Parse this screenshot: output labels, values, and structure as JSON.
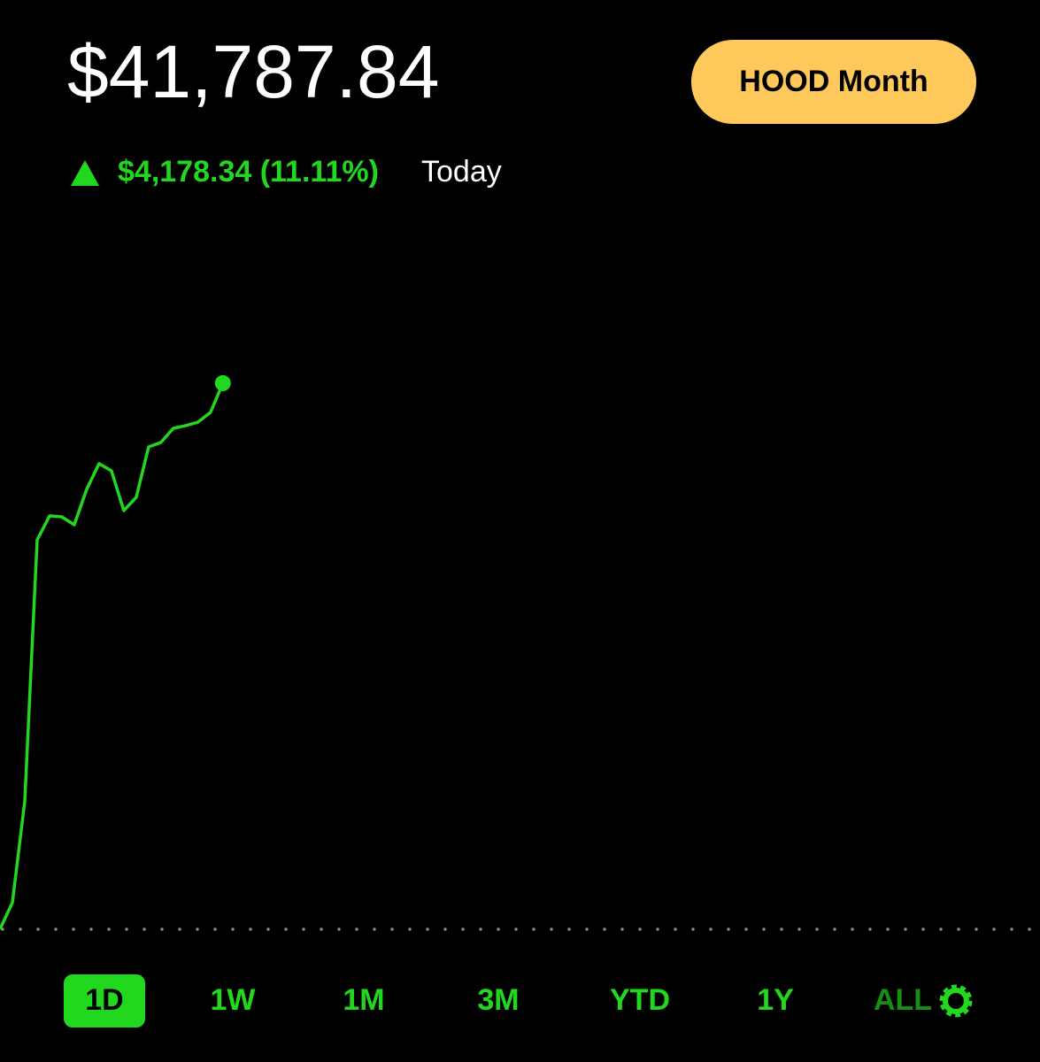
{
  "header": {
    "balance": "$41,787.84",
    "change": "$4,178.34 (11.11%)",
    "change_period": "Today",
    "button": "HOOD Month"
  },
  "chart_data": {
    "type": "line",
    "color": "#22d81e",
    "values": [
      37610,
      37813,
      38591,
      40589,
      40772,
      40765,
      40704,
      40975,
      41172,
      41117,
      40813,
      40914,
      41300,
      41334,
      41442,
      41463,
      41490,
      41564,
      41787.84
    ],
    "baseline": 37609.5,
    "ylim": [
      37406,
      43162
    ],
    "xlim": [
      0,
      84
    ]
  },
  "ranges": [
    "1D",
    "1W",
    "1M",
    "3M",
    "YTD",
    "1Y",
    "ALL"
  ],
  "selected_range": 0
}
